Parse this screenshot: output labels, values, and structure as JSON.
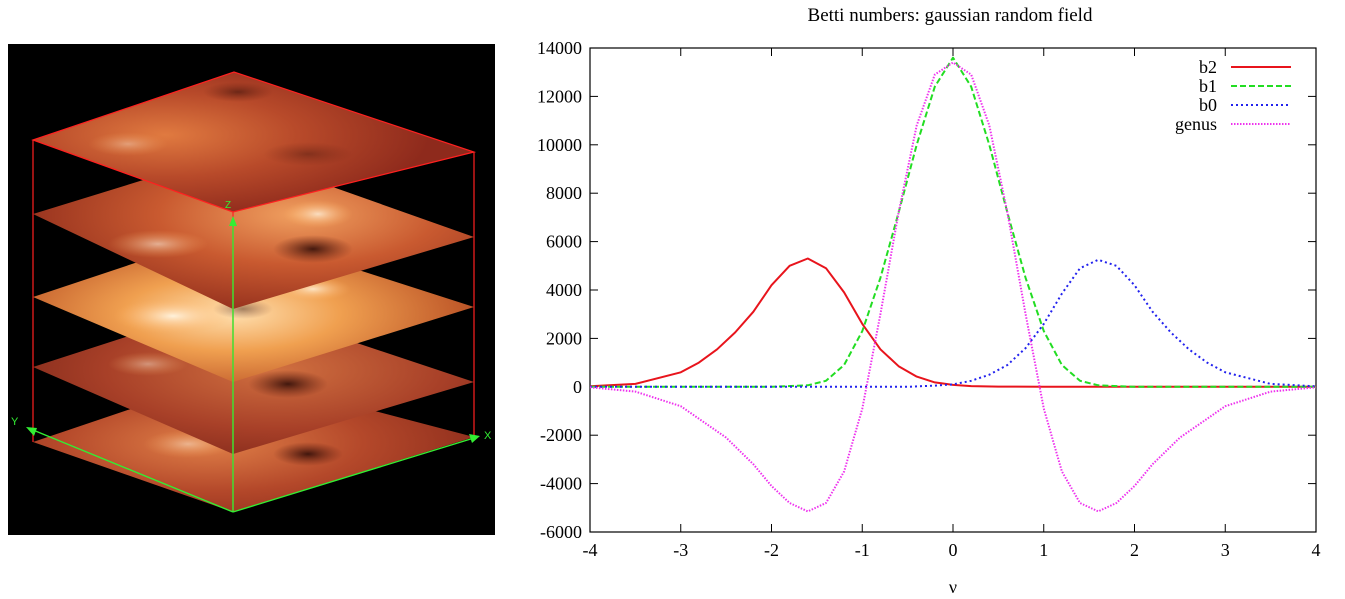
{
  "render_panel": {
    "axis_labels": {
      "x": "X",
      "y": "Y",
      "z": "Z"
    },
    "slice_count": 5,
    "colors": {
      "background": "#000000",
      "box": "#ff2020",
      "axes": "#33ee33"
    }
  },
  "chart_data": {
    "type": "line",
    "title": "Betti numbers: gaussian random field",
    "xlabel": "ν",
    "ylabel": "",
    "xlim": [
      -4,
      4
    ],
    "ylim": [
      -6000,
      14000
    ],
    "xticks": [
      "-4",
      "-3",
      "-2",
      "-1",
      "0",
      "1",
      "2",
      "3",
      "4"
    ],
    "yticks": [
      "-6000",
      "-4000",
      "-2000",
      "0",
      "2000",
      "4000",
      "6000",
      "8000",
      "10000",
      "12000",
      "14000"
    ],
    "legend_position": "top-right",
    "grid": false,
    "series": [
      {
        "name": "b2",
        "color": "#e8141c",
        "dash": "solid",
        "x": [
          -4,
          -3.5,
          -3,
          -2.8,
          -2.6,
          -2.4,
          -2.2,
          -2.0,
          -1.8,
          -1.6,
          -1.4,
          -1.2,
          -1.0,
          -0.8,
          -0.6,
          -0.4,
          -0.2,
          0,
          0.2,
          0.5,
          1,
          2,
          3,
          4
        ],
        "y": [
          20,
          120,
          600,
          1000,
          1550,
          2250,
          3100,
          4200,
          5000,
          5300,
          4900,
          3900,
          2600,
          1550,
          850,
          420,
          180,
          80,
          30,
          10,
          0,
          0,
          0,
          0
        ]
      },
      {
        "name": "b1",
        "color": "#22dd22",
        "dash": "dashed",
        "x": [
          -4,
          -2,
          -1.6,
          -1.4,
          -1.2,
          -1.0,
          -0.8,
          -0.6,
          -0.4,
          -0.2,
          0,
          0.2,
          0.4,
          0.6,
          0.8,
          1.0,
          1.2,
          1.4,
          1.6,
          2,
          4
        ],
        "y": [
          0,
          0,
          60,
          250,
          900,
          2300,
          4500,
          7200,
          10000,
          12400,
          13600,
          12400,
          10000,
          7200,
          4500,
          2300,
          900,
          250,
          60,
          0,
          0
        ]
      },
      {
        "name": "b0",
        "color": "#2222ee",
        "dash": "dotted",
        "x": [
          -4,
          -0.5,
          -0.2,
          0,
          0.2,
          0.4,
          0.6,
          0.8,
          1.0,
          1.2,
          1.4,
          1.6,
          1.8,
          2.0,
          2.2,
          2.4,
          2.6,
          2.8,
          3.0,
          3.5,
          4
        ],
        "y": [
          0,
          0,
          50,
          100,
          250,
          500,
          900,
          1600,
          2600,
          3850,
          4900,
          5250,
          5000,
          4200,
          3100,
          2250,
          1550,
          1000,
          600,
          120,
          20
        ]
      },
      {
        "name": "genus",
        "color": "#ee33ee",
        "dash": "dotted-fine",
        "x": [
          -4,
          -3.5,
          -3,
          -2.5,
          -2.2,
          -2.0,
          -1.8,
          -1.6,
          -1.4,
          -1.2,
          -1.0,
          -0.8,
          -0.6,
          -0.4,
          -0.2,
          0,
          0.2,
          0.4,
          0.6,
          0.8,
          1.0,
          1.2,
          1.4,
          1.6,
          1.8,
          2.0,
          2.2,
          2.5,
          3,
          3.5,
          4
        ],
        "y": [
          -20,
          -200,
          -800,
          -2100,
          -3200,
          -4100,
          -4800,
          -5150,
          -4800,
          -3500,
          -900,
          3000,
          7200,
          10800,
          12900,
          13400,
          12900,
          10800,
          7200,
          3000,
          -900,
          -3500,
          -4800,
          -5150,
          -4800,
          -4100,
          -3200,
          -2100,
          -800,
          -200,
          -20
        ]
      }
    ]
  }
}
